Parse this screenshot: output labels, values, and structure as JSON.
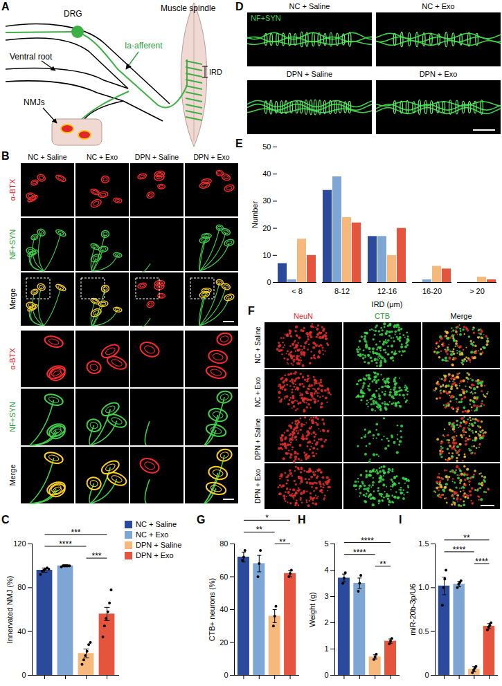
{
  "figure": {
    "schematic": {
      "title": "A",
      "labels": {
        "drg": "DRG",
        "afferent": "Ia-afferent",
        "spindle": "Muscle spindle",
        "ird": "IRD",
        "ventral_root": "Ventral root",
        "nmj": "NMJs"
      }
    },
    "nmj_images": {
      "title": "B",
      "columns": [
        "NC + Saline",
        "NC + Exo",
        "DPN + Saline",
        "DPN + Exo"
      ],
      "rows": [
        "α-BTX",
        "NF+SYN",
        "Merge",
        "α-BTX",
        "NF+SYN",
        "Merge"
      ]
    },
    "spindle_images": {
      "title": "D",
      "columns": [
        "NC + Saline",
        "NC + Exo",
        "DPN + Saline",
        "DPN + Exo"
      ],
      "stain": "NF+SYN"
    },
    "drg_images": {
      "title": "F",
      "columns": [
        "NeuN",
        "CTB",
        "Merge"
      ],
      "rows": [
        "NC + Saline",
        "NC + Exo",
        "DPN + Saline",
        "DPN + Exo"
      ]
    }
  },
  "chart_data": [
    {
      "title": "C",
      "type": "bar",
      "ylabel": "Innervated NMJ (%)",
      "categories": [
        "NC + Saline",
        "NC + Exo",
        "DPN + Saline",
        "DPN + Exo"
      ],
      "colors": [
        "#2b4a9b",
        "#7ea6d4",
        "#f6b97b",
        "#e5553d"
      ],
      "values": [
        96,
        100,
        20,
        56
      ],
      "errors": [
        2,
        1,
        4,
        6
      ],
      "points": [
        [
          92,
          95,
          96,
          97,
          98,
          97
        ],
        [
          99,
          100,
          100,
          100,
          100,
          100
        ],
        [
          10,
          14,
          18,
          22,
          28,
          30
        ],
        [
          35,
          45,
          52,
          58,
          66,
          78
        ]
      ],
      "ylim": [
        0,
        120
      ],
      "yticks": [
        0,
        40,
        80,
        120
      ],
      "tick_labels": "y",
      "legend": "right",
      "annotations": [
        {
          "from": 0,
          "to": 3,
          "label": "***"
        },
        {
          "from": 0,
          "to": 2,
          "label": "****"
        },
        {
          "from": 2,
          "to": 3,
          "label": "***"
        }
      ]
    },
    {
      "title": "E",
      "type": "bar",
      "xlabel": "IRD (μm)",
      "ylabel": "Number",
      "categories": [
        "< 8",
        "8-12",
        "12-16",
        "16-20",
        "> 20"
      ],
      "series": [
        {
          "name": "NC + Saline",
          "color": "#2b4a9b",
          "values": [
            7,
            34,
            17,
            0,
            0
          ]
        },
        {
          "name": "NC + Exo",
          "color": "#7ea6d4",
          "values": [
            1,
            39,
            17,
            1,
            0
          ]
        },
        {
          "name": "DPN + Saline",
          "color": "#f6b97b",
          "values": [
            16,
            24,
            10,
            6,
            2
          ]
        },
        {
          "name": "DPN + Exo",
          "color": "#e5553d",
          "values": [
            10,
            22,
            20,
            5,
            1
          ]
        }
      ],
      "ylim": [
        0,
        50
      ],
      "yticks": [
        0,
        10,
        20,
        30,
        40,
        50
      ]
    },
    {
      "title": "G",
      "type": "bar",
      "ylabel": "CTB+ neurons (%)",
      "categories": [
        "NC + Saline",
        "NC + Exo",
        "DPN + Saline",
        "DPN + Exo"
      ],
      "colors": [
        "#2b4a9b",
        "#7ea6d4",
        "#f6b97b",
        "#e5553d"
      ],
      "values": [
        72,
        68,
        36,
        62
      ],
      "errors": [
        3,
        5,
        4,
        2
      ],
      "points": [
        [
          70,
          72,
          76
        ],
        [
          60,
          68,
          76
        ],
        [
          30,
          36,
          42
        ],
        [
          60,
          62,
          64
        ]
      ],
      "ylim": [
        0,
        80
      ],
      "yticks": [
        0,
        20,
        40,
        60,
        80
      ],
      "tick_labels": "y",
      "annotations": [
        {
          "from": 0,
          "to": 3,
          "label": "*"
        },
        {
          "from": 0,
          "to": 2,
          "label": "**"
        },
        {
          "from": 2,
          "to": 3,
          "label": "**"
        }
      ]
    },
    {
      "title": "H",
      "type": "bar",
      "ylabel": "Weight (g)",
      "categories": [
        "NC + Saline",
        "NC + Exo",
        "DPN + Saline",
        "DPN + Exo"
      ],
      "colors": [
        "#2b4a9b",
        "#7ea6d4",
        "#f6b97b",
        "#e5553d"
      ],
      "values": [
        3.7,
        3.5,
        0.7,
        1.3
      ],
      "errors": [
        0.15,
        0.2,
        0.08,
        0.08
      ],
      "points": [
        [
          3.5,
          3.7,
          3.9
        ],
        [
          3.2,
          3.5,
          3.8
        ],
        [
          0.6,
          0.7,
          0.8
        ],
        [
          1.2,
          1.3,
          1.4
        ]
      ],
      "ylim": [
        0,
        5
      ],
      "yticks": [
        0,
        1,
        2,
        3,
        4,
        5
      ],
      "tick_labels": "y",
      "annotations": [
        {
          "from": 0,
          "to": 3,
          "label": "****"
        },
        {
          "from": 0,
          "to": 2,
          "label": "****"
        },
        {
          "from": 2,
          "to": 3,
          "label": "**"
        }
      ]
    },
    {
      "title": "I",
      "type": "bar",
      "ylabel": "miR-20b-3p/U6",
      "categories": [
        "NC + Saline",
        "NC + Exo",
        "DPN + Saline",
        "DPN + Exo"
      ],
      "colors": [
        "#2b4a9b",
        "#7ea6d4",
        "#f6b97b",
        "#e5553d"
      ],
      "values": [
        1.02,
        1.04,
        0.07,
        0.56
      ],
      "errors": [
        0.1,
        0.03,
        0.03,
        0.03
      ],
      "points": [
        [
          0.8,
          1.0,
          1.1,
          1.2
        ],
        [
          1.0,
          1.04,
          1.06,
          1.08
        ],
        [
          0.03,
          0.06,
          0.08,
          0.1
        ],
        [
          0.52,
          0.55,
          0.57,
          0.6
        ]
      ],
      "ylim": [
        0,
        1.5
      ],
      "yticks": [
        0,
        0.5,
        {
          "value": 1,
          "label": "1.0"
        },
        1.5
      ],
      "tick_labels": "y",
      "annotations": [
        {
          "from": 0,
          "to": 3,
          "label": "**"
        },
        {
          "from": 0,
          "to": 2,
          "label": "****"
        },
        {
          "from": 2,
          "to": 3,
          "label": "****"
        }
      ]
    }
  ]
}
